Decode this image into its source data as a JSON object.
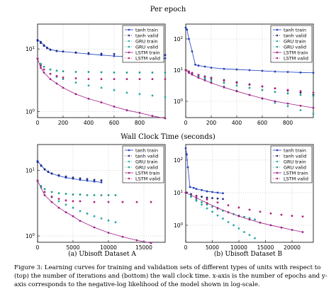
{
  "headings": {
    "top": "Per epoch",
    "bottom": "Wall Clock Time (seconds)"
  },
  "subcaptions": {
    "a": "(a) Ubisoft Dataset A",
    "b": "(b) Ubisoft Dataset B"
  },
  "caption": "Figure 3: Learning curves for training and validation sets of different types of units with respect to (top) the number of iterations and (bottom) the wall clock time. x-axis is the number of epochs and y-axis corresponds to the negative-log likelihood of the model shown in log-scale.",
  "series_styles": [
    {
      "name": "tanh train",
      "color": "#1f3fbf",
      "marker": "circle",
      "line": true
    },
    {
      "name": "tanh valid",
      "color": "#1a2a80",
      "marker": "circle",
      "line": false
    },
    {
      "name": "GRU train",
      "color": "#2aa8a8",
      "marker": "circle",
      "line": false
    },
    {
      "name": "GRU valid",
      "color": "#1e9e8a",
      "marker": "circle",
      "line": false
    },
    {
      "name": "LSTM train",
      "color": "#a0208a",
      "marker": "circle",
      "line": true
    },
    {
      "name": "LSTM valid",
      "color": "#b0207a",
      "marker": "circle",
      "line": false
    }
  ],
  "chart_data": [
    {
      "type": "line",
      "yscale": "log",
      "grid": true,
      "legend": "top-right",
      "xlim": [
        0,
        1000
      ],
      "ylim": [
        0.8,
        25
      ],
      "xticks": [
        0,
        200,
        400,
        600,
        800
      ],
      "yticks": [
        1,
        10
      ],
      "ytick_labels": [
        "10^0",
        "10^1"
      ],
      "series": [
        {
          "name": "tanh train",
          "x": [
            0,
            25,
            50,
            75,
            100,
            150,
            200,
            300,
            400,
            500,
            600,
            700,
            800,
            900,
            1000
          ],
          "y": [
            14,
            13,
            11.5,
            10.5,
            9.8,
            9.3,
            9.1,
            8.7,
            8.3,
            8.0,
            7.7,
            7.5,
            7.3,
            7.2,
            7.1
          ]
        },
        {
          "name": "tanh valid",
          "x": [
            0,
            25,
            50,
            75,
            100,
            150,
            200,
            300,
            400,
            500,
            600,
            700,
            800,
            900,
            1000
          ],
          "y": [
            13.5,
            12.5,
            11.2,
            10.3,
            9.7,
            9.3,
            9.1,
            8.8,
            8.6,
            8.4,
            8.3,
            8.2,
            8.1,
            8.1,
            8.0
          ]
        },
        {
          "name": "GRU train",
          "x": [
            0,
            25,
            50,
            100,
            150,
            200,
            300,
            400,
            500,
            600,
            700,
            800,
            900,
            1000
          ],
          "y": [
            7.0,
            5.5,
            4.7,
            4.0,
            3.6,
            3.3,
            2.9,
            2.6,
            2.4,
            2.2,
            2.0,
            1.9,
            1.8,
            1.7
          ]
        },
        {
          "name": "GRU valid",
          "x": [
            0,
            25,
            50,
            100,
            150,
            200,
            300,
            400,
            500,
            600,
            700,
            800,
            900,
            1000
          ],
          "y": [
            7.0,
            5.8,
            5.2,
            4.7,
            4.5,
            4.4,
            4.3,
            4.3,
            4.25,
            4.2,
            4.2,
            4.2,
            4.2,
            4.2
          ]
        },
        {
          "name": "LSTM train",
          "x": [
            0,
            25,
            50,
            100,
            150,
            200,
            300,
            400,
            500,
            600,
            700,
            800,
            900,
            1000
          ],
          "y": [
            7.0,
            5.0,
            4.2,
            3.3,
            2.8,
            2.4,
            1.9,
            1.6,
            1.4,
            1.2,
            1.05,
            0.95,
            0.85,
            0.78
          ]
        },
        {
          "name": "LSTM valid",
          "x": [
            0,
            25,
            50,
            100,
            150,
            200,
            300,
            400,
            500,
            600,
            700,
            800,
            900,
            1000
          ],
          "y": [
            7.0,
            5.4,
            4.7,
            4.0,
            3.7,
            3.5,
            3.4,
            3.3,
            3.3,
            3.3,
            3.3,
            3.3,
            3.3,
            3.3
          ]
        }
      ]
    },
    {
      "type": "line",
      "yscale": "log",
      "grid": true,
      "legend": "top-right",
      "xlim": [
        0,
        1000
      ],
      "ylim": [
        0.3,
        300
      ],
      "xticks": [
        0,
        200,
        400,
        600,
        800
      ],
      "yticks": [
        1,
        10,
        100
      ],
      "ytick_labels": [
        "10^0",
        "10^1",
        "10^2"
      ],
      "series": [
        {
          "name": "tanh train",
          "x": [
            0,
            10,
            25,
            50,
            75,
            100,
            150,
            200,
            300,
            400,
            500,
            600,
            700,
            800,
            900,
            1000
          ],
          "y": [
            230,
            200,
            100,
            40,
            15,
            14,
            13,
            12,
            11,
            10.5,
            10,
            9.5,
            9,
            8.7,
            8.4,
            8.2
          ]
        },
        {
          "name": "tanh valid",
          "x": [
            0,
            25,
            50,
            100,
            150,
            200,
            300,
            400,
            500,
            600,
            700,
            800,
            900,
            1000
          ],
          "y": [
            10,
            9,
            8,
            7,
            6.3,
            5.7,
            4.8,
            4.1,
            3.5,
            3.0,
            2.6,
            2.2,
            1.9,
            1.6
          ]
        },
        {
          "name": "GRU train",
          "x": [
            0,
            25,
            50,
            100,
            150,
            200,
            300,
            400,
            500,
            600,
            700,
            800,
            900,
            1000
          ],
          "y": [
            10,
            8.5,
            7.5,
            6,
            5,
            4.2,
            3.0,
            2.2,
            1.6,
            1.2,
            0.9,
            0.7,
            0.52,
            0.4
          ]
        },
        {
          "name": "GRU valid",
          "x": [
            0,
            25,
            50,
            100,
            150,
            200,
            300,
            400,
            500,
            600,
            700,
            800,
            900,
            1000
          ],
          "y": [
            10,
            8.7,
            7.8,
            6.5,
            5.6,
            4.9,
            3.9,
            3.2,
            2.7,
            2.3,
            2.0,
            1.8,
            1.6,
            1.5
          ]
        },
        {
          "name": "LSTM train",
          "x": [
            0,
            25,
            50,
            100,
            150,
            200,
            300,
            400,
            500,
            600,
            700,
            800,
            900,
            1000
          ],
          "y": [
            10,
            8.2,
            7.2,
            5.7,
            4.7,
            3.9,
            2.8,
            2.1,
            1.6,
            1.25,
            1.0,
            0.85,
            0.72,
            0.62
          ]
        },
        {
          "name": "LSTM valid",
          "x": [
            0,
            25,
            50,
            100,
            150,
            200,
            300,
            400,
            500,
            600,
            700,
            800,
            900,
            1000
          ],
          "y": [
            10,
            9,
            8.2,
            7,
            6.2,
            5.5,
            4.6,
            3.9,
            3.4,
            3.0,
            2.6,
            2.3,
            2.1,
            1.9
          ]
        }
      ]
    },
    {
      "type": "line",
      "yscale": "log",
      "grid": true,
      "legend": "top-right",
      "xlim": [
        0,
        18000
      ],
      "ylim": [
        0.8,
        25
      ],
      "xticks": [
        0,
        5000,
        10000,
        15000
      ],
      "yticks": [
        1,
        10
      ],
      "ytick_labels": [
        "10^0",
        "10^1"
      ],
      "series": [
        {
          "name": "tanh train",
          "x": [
            0,
            500,
            1000,
            1500,
            2000,
            3000,
            4000,
            5000,
            6000,
            7000,
            8000,
            9000
          ],
          "y": [
            14,
            12,
            10.5,
            9.5,
            9.0,
            8.3,
            7.8,
            7.5,
            7.2,
            7.0,
            6.8,
            6.6
          ]
        },
        {
          "name": "tanh valid",
          "x": [
            0,
            500,
            1000,
            1500,
            2000,
            3000,
            4000,
            5000,
            6000,
            7000,
            8000,
            9000
          ],
          "y": [
            13.5,
            11.8,
            10.4,
            9.6,
            9.0,
            8.5,
            8.1,
            7.8,
            7.6,
            7.4,
            7.2,
            7.1
          ]
        },
        {
          "name": "GRU train",
          "x": [
            0,
            500,
            1000,
            2000,
            3000,
            4000,
            5000,
            6000,
            7000,
            8000,
            9000,
            10000,
            11000
          ],
          "y": [
            7.0,
            5.5,
            4.7,
            3.9,
            3.4,
            3.0,
            2.7,
            2.4,
            2.2,
            2.0,
            1.85,
            1.72,
            1.62
          ]
        },
        {
          "name": "GRU valid",
          "x": [
            0,
            500,
            1000,
            2000,
            3000,
            4000,
            5000,
            6000,
            7000,
            8000,
            9000,
            10000,
            11000
          ],
          "y": [
            7.0,
            5.8,
            5.2,
            4.7,
            4.5,
            4.4,
            4.3,
            4.3,
            4.2,
            4.2,
            4.2,
            4.2,
            4.2
          ]
        },
        {
          "name": "LSTM train",
          "x": [
            0,
            1000,
            2000,
            3000,
            4000,
            5000,
            6000,
            8000,
            10000,
            12000,
            14000,
            16000
          ],
          "y": [
            7.0,
            4.2,
            3.3,
            2.7,
            2.3,
            2.0,
            1.7,
            1.35,
            1.12,
            0.97,
            0.86,
            0.78
          ]
        },
        {
          "name": "LSTM valid",
          "x": [
            0,
            1000,
            2000,
            3000,
            4000,
            5000,
            6000,
            8000,
            10000,
            12000,
            14000,
            16000
          ],
          "y": [
            7.0,
            4.7,
            4.0,
            3.7,
            3.5,
            3.4,
            3.4,
            3.3,
            3.3,
            3.3,
            3.3,
            3.3
          ]
        }
      ]
    },
    {
      "type": "line",
      "yscale": "log",
      "grid": true,
      "legend": "top-right",
      "xlim": [
        0,
        24000
      ],
      "ylim": [
        0.3,
        300
      ],
      "xticks": [
        0,
        5000,
        10000,
        15000,
        20000
      ],
      "yticks": [
        1,
        10,
        100
      ],
      "ytick_labels": [
        "10^0",
        "10^1",
        "10^2"
      ],
      "series": [
        {
          "name": "tanh train",
          "x": [
            0,
            200,
            400,
            800,
            1500,
            2000,
            3000,
            4000,
            5000,
            6000,
            7000
          ],
          "y": [
            230,
            150,
            60,
            15,
            14,
            13,
            12,
            11,
            10.5,
            10,
            9.6
          ]
        },
        {
          "name": "tanh valid",
          "x": [
            0,
            200,
            1000,
            2000,
            3000,
            4000,
            5000,
            6000,
            7000
          ],
          "y": [
            10,
            10,
            9,
            8,
            7.5,
            7,
            6.8,
            6.6,
            6.4
          ]
        },
        {
          "name": "GRU train",
          "x": [
            0,
            1000,
            2000,
            3000,
            4000,
            5000,
            6000,
            7000,
            8000,
            9000,
            10000,
            11000,
            12000,
            13000
          ],
          "y": [
            10,
            7.5,
            5.6,
            4.3,
            3.3,
            2.6,
            2.0,
            1.6,
            1.25,
            1.0,
            0.8,
            0.62,
            0.5,
            0.4
          ]
        },
        {
          "name": "GRU valid",
          "x": [
            0,
            1000,
            2000,
            3000,
            4000,
            5000,
            6000,
            7000,
            8000,
            9000,
            10000,
            11000,
            12000,
            13000
          ],
          "y": [
            10,
            7.8,
            6.2,
            5.1,
            4.3,
            3.7,
            3.2,
            2.8,
            2.5,
            2.2,
            2.0,
            1.8,
            1.65,
            1.5
          ]
        },
        {
          "name": "LSTM train",
          "x": [
            0,
            2000,
            4000,
            6000,
            8000,
            10000,
            12000,
            14000,
            16000,
            18000,
            20000,
            22000
          ],
          "y": [
            10,
            7,
            4.8,
            3.4,
            2.5,
            1.9,
            1.5,
            1.2,
            1.0,
            0.85,
            0.72,
            0.62
          ]
        },
        {
          "name": "LSTM valid",
          "x": [
            0,
            2000,
            4000,
            6000,
            8000,
            10000,
            12000,
            14000,
            16000,
            18000,
            20000,
            22000
          ],
          "y": [
            10,
            8,
            6.2,
            5.0,
            4.1,
            3.5,
            3.0,
            2.6,
            2.3,
            2.1,
            1.95,
            1.85
          ]
        }
      ]
    }
  ]
}
